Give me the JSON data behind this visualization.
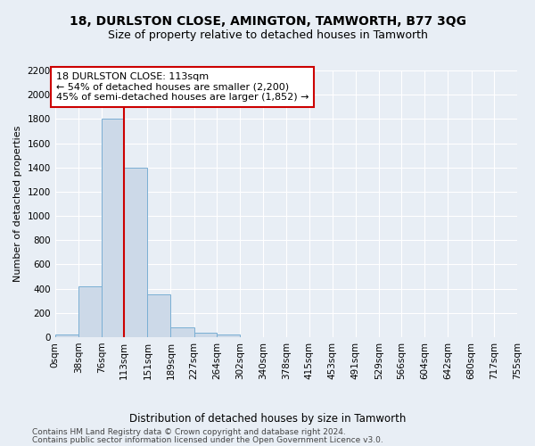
{
  "title": "18, DURLSTON CLOSE, AMINGTON, TAMWORTH, B77 3QG",
  "subtitle": "Size of property relative to detached houses in Tamworth",
  "xlabel": "Distribution of detached houses by size in Tamworth",
  "ylabel": "Number of detached properties",
  "bin_edges": [
    0,
    38,
    76,
    113,
    151,
    189,
    227,
    264,
    302,
    340,
    378,
    415,
    453,
    491,
    529,
    566,
    604,
    642,
    680,
    717,
    755
  ],
  "bar_heights": [
    20,
    420,
    1800,
    1400,
    350,
    80,
    35,
    20,
    0,
    0,
    0,
    0,
    0,
    0,
    0,
    0,
    0,
    0,
    0,
    0
  ],
  "bar_color": "#ccd9e8",
  "bar_edge_color": "#7aafd4",
  "property_line_x": 113,
  "property_line_color": "#cc0000",
  "annotation_text": "18 DURLSTON CLOSE: 113sqm\n← 54% of detached houses are smaller (2,200)\n45% of semi-detached houses are larger (1,852) →",
  "annotation_box_color": "#ffffff",
  "annotation_box_edgecolor": "#cc0000",
  "ylim": [
    0,
    2200
  ],
  "yticks": [
    0,
    200,
    400,
    600,
    800,
    1000,
    1200,
    1400,
    1600,
    1800,
    2000,
    2200
  ],
  "bg_color": "#e8eef5",
  "footer_line1": "Contains HM Land Registry data © Crown copyright and database right 2024.",
  "footer_line2": "Contains public sector information licensed under the Open Government Licence v3.0.",
  "title_fontsize": 10,
  "subtitle_fontsize": 9,
  "xlabel_fontsize": 8.5,
  "ylabel_fontsize": 8,
  "tick_fontsize": 7.5,
  "annotation_fontsize": 8,
  "footer_fontsize": 6.5
}
